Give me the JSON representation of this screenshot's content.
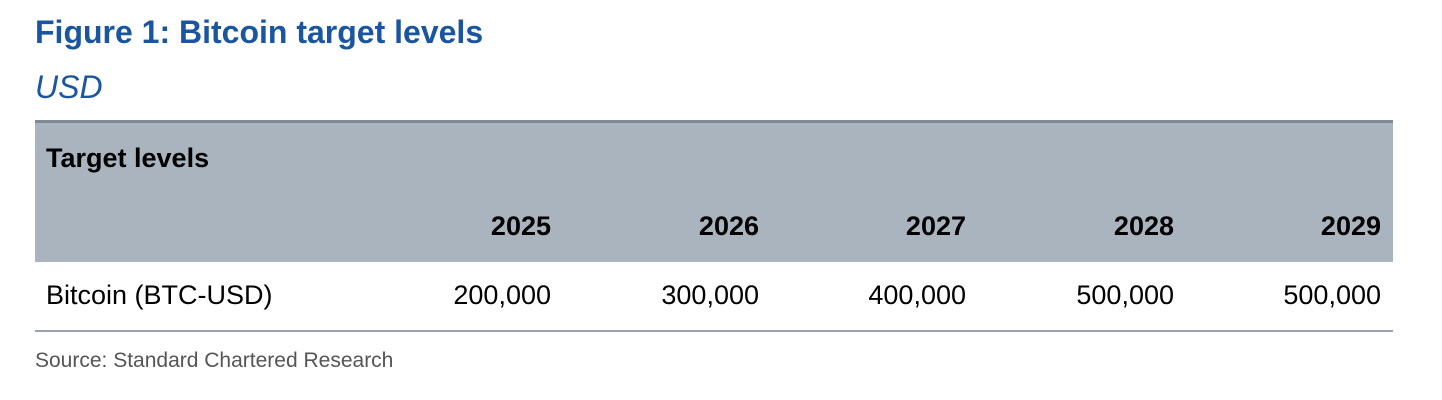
{
  "title": "Figure 1: Bitcoin target levels",
  "subtitle": "USD",
  "table": {
    "header": "Target levels",
    "columns": [
      "2025",
      "2026",
      "2027",
      "2028",
      "2029"
    ],
    "rows": [
      [
        "Bitcoin (BTC-USD)",
        "200,000",
        "300,000",
        "400,000",
        "500,000",
        "500,000"
      ]
    ]
  },
  "source": "Source: Standard Chartered Research"
}
